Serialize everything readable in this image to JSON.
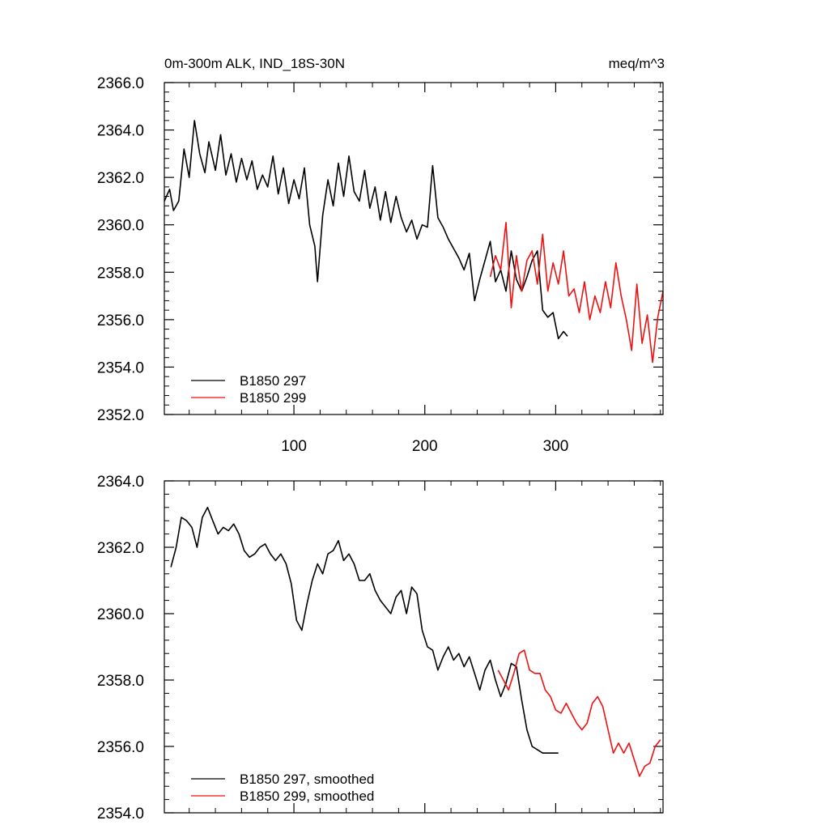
{
  "chart_data": [
    {
      "type": "line",
      "title_left": "0m-300m ALK, IND_18S-30N",
      "title_right": "meq/m^3",
      "xlabel": "",
      "ylabel": "",
      "xlim": [
        1,
        382
      ],
      "ylim": [
        2352.0,
        2366.0
      ],
      "yticks": [
        2352.0,
        2354.0,
        2356.0,
        2358.0,
        2360.0,
        2362.0,
        2364.0,
        2366.0
      ],
      "ytick_labels": [
        "2352.0",
        "2354.0",
        "2356.0",
        "2358.0",
        "2360.0",
        "2362.0",
        "2364.0",
        "2366.0"
      ],
      "xticks": [
        100,
        200,
        300
      ],
      "xtick_labels": [
        "100",
        "200",
        "300"
      ],
      "legend_position": "bottom-left",
      "series": [
        {
          "name": "B1850 297",
          "color": "#000000",
          "x": [
            1,
            5,
            8,
            12,
            16,
            20,
            24,
            28,
            32,
            35,
            40,
            44,
            48,
            52,
            56,
            60,
            64,
            68,
            72,
            76,
            80,
            84,
            88,
            92,
            96,
            100,
            104,
            108,
            112,
            116,
            118,
            122,
            126,
            130,
            134,
            138,
            142,
            146,
            150,
            154,
            158,
            162,
            166,
            170,
            174,
            178,
            182,
            186,
            190,
            194,
            198,
            202,
            206,
            210,
            214,
            218,
            222,
            226,
            230,
            234,
            238,
            242,
            246,
            250,
            254,
            258,
            262,
            266,
            270,
            274,
            278,
            282,
            286,
            290,
            294,
            298,
            302,
            306,
            309
          ],
          "values": [
            2361.0,
            2361.5,
            2360.6,
            2361.0,
            2363.2,
            2362.0,
            2364.4,
            2363.0,
            2362.2,
            2363.5,
            2362.3,
            2363.8,
            2362.1,
            2363.0,
            2361.8,
            2362.8,
            2361.9,
            2362.7,
            2361.5,
            2362.1,
            2361.6,
            2362.9,
            2361.3,
            2362.4,
            2360.9,
            2361.9,
            2361.1,
            2362.4,
            2360.0,
            2359.1,
            2357.6,
            2360.4,
            2361.9,
            2360.8,
            2362.6,
            2361.2,
            2362.9,
            2361.4,
            2361.0,
            2362.3,
            2360.7,
            2361.6,
            2360.2,
            2361.4,
            2360.1,
            2361.2,
            2360.3,
            2359.7,
            2360.2,
            2359.4,
            2360.0,
            2359.9,
            2362.5,
            2360.3,
            2359.9,
            2359.4,
            2359.0,
            2358.6,
            2358.1,
            2358.8,
            2356.8,
            2357.7,
            2358.5,
            2359.3,
            2357.6,
            2358.1,
            2357.2,
            2358.9,
            2357.7,
            2357.2,
            2357.8,
            2358.5,
            2358.9,
            2356.4,
            2356.1,
            2356.3,
            2355.2,
            2355.5,
            2355.3
          ]
        },
        {
          "name": "B1850 299",
          "color": "#ee1111",
          "x": [
            250,
            254,
            258,
            262,
            266,
            270,
            274,
            278,
            282,
            286,
            290,
            294,
            298,
            302,
            306,
            310,
            314,
            318,
            322,
            326,
            330,
            334,
            338,
            342,
            346,
            350,
            354,
            358,
            362,
            366,
            370,
            374,
            378,
            382
          ],
          "values": [
            2357.8,
            2358.7,
            2358.1,
            2360.1,
            2356.5,
            2358.7,
            2357.2,
            2358.5,
            2358.9,
            2357.5,
            2359.6,
            2357.2,
            2358.4,
            2357.5,
            2358.9,
            2357.0,
            2357.3,
            2356.3,
            2357.6,
            2356.0,
            2357.0,
            2356.3,
            2357.6,
            2356.5,
            2358.4,
            2357.0,
            2356.0,
            2354.7,
            2357.5,
            2355.0,
            2356.2,
            2354.2,
            2356.1,
            2357.2
          ]
        }
      ]
    },
    {
      "type": "line",
      "title_left": "",
      "title_right": "",
      "xlabel": "",
      "ylabel": "",
      "xlim": [
        1,
        382
      ],
      "ylim": [
        2354.0,
        2364.0
      ],
      "yticks": [
        2354.0,
        2356.0,
        2358.0,
        2360.0,
        2362.0,
        2364.0
      ],
      "ytick_labels": [
        "2354.0",
        "2356.0",
        "2358.0",
        "2360.0",
        "2362.0",
        "2364.0"
      ],
      "xticks": [
        100,
        200,
        300
      ],
      "xtick_labels": [],
      "legend_position": "bottom-left",
      "series": [
        {
          "name": "B1850 297, smoothed",
          "color": "#000000",
          "x": [
            6,
            10,
            14,
            18,
            22,
            26,
            30,
            34,
            38,
            42,
            46,
            50,
            54,
            58,
            62,
            66,
            70,
            74,
            78,
            82,
            86,
            90,
            94,
            98,
            102,
            106,
            110,
            114,
            118,
            122,
            126,
            130,
            134,
            138,
            142,
            146,
            150,
            154,
            158,
            162,
            166,
            170,
            174,
            178,
            182,
            186,
            190,
            194,
            198,
            202,
            206,
            210,
            214,
            218,
            222,
            226,
            230,
            234,
            238,
            242,
            246,
            250,
            254,
            258,
            262,
            266,
            270,
            274,
            278,
            282,
            286,
            290,
            294,
            298,
            302
          ],
          "values": [
            2361.4,
            2362.0,
            2362.9,
            2362.8,
            2362.6,
            2362.0,
            2362.9,
            2363.2,
            2362.8,
            2362.4,
            2362.6,
            2362.5,
            2362.7,
            2362.4,
            2361.9,
            2361.7,
            2361.8,
            2362.0,
            2362.1,
            2361.8,
            2361.6,
            2361.8,
            2361.5,
            2360.9,
            2359.8,
            2359.5,
            2360.3,
            2361.0,
            2361.5,
            2361.2,
            2361.8,
            2361.9,
            2362.2,
            2361.6,
            2361.8,
            2361.5,
            2361.0,
            2361.0,
            2361.2,
            2360.7,
            2360.4,
            2360.2,
            2360.0,
            2360.5,
            2360.7,
            2360.0,
            2360.8,
            2360.6,
            2359.5,
            2359.0,
            2358.9,
            2358.3,
            2358.7,
            2359.0,
            2358.6,
            2358.8,
            2358.4,
            2358.7,
            2358.2,
            2357.7,
            2358.3,
            2358.6,
            2358.0,
            2357.5,
            2357.9,
            2358.5,
            2358.4,
            2357.4,
            2356.5,
            2356.0,
            2355.9,
            2355.8,
            2355.8,
            2355.8,
            2355.8
          ]
        },
        {
          "name": "B1850 299, smoothed",
          "color": "#ee1111",
          "x": [
            256,
            260,
            264,
            268,
            272,
            276,
            280,
            284,
            288,
            292,
            296,
            300,
            304,
            308,
            312,
            316,
            320,
            324,
            328,
            332,
            336,
            340,
            344,
            348,
            352,
            356,
            360,
            364,
            368,
            372,
            376,
            380
          ],
          "values": [
            2358.3,
            2358.0,
            2357.7,
            2358.2,
            2358.8,
            2358.9,
            2358.3,
            2358.2,
            2358.2,
            2357.7,
            2357.5,
            2357.1,
            2357.0,
            2357.3,
            2357.0,
            2356.7,
            2356.5,
            2356.7,
            2357.3,
            2357.5,
            2357.2,
            2356.5,
            2355.8,
            2356.1,
            2355.8,
            2356.1,
            2355.6,
            2355.1,
            2355.4,
            2355.5,
            2356.0,
            2356.2
          ]
        }
      ]
    }
  ]
}
